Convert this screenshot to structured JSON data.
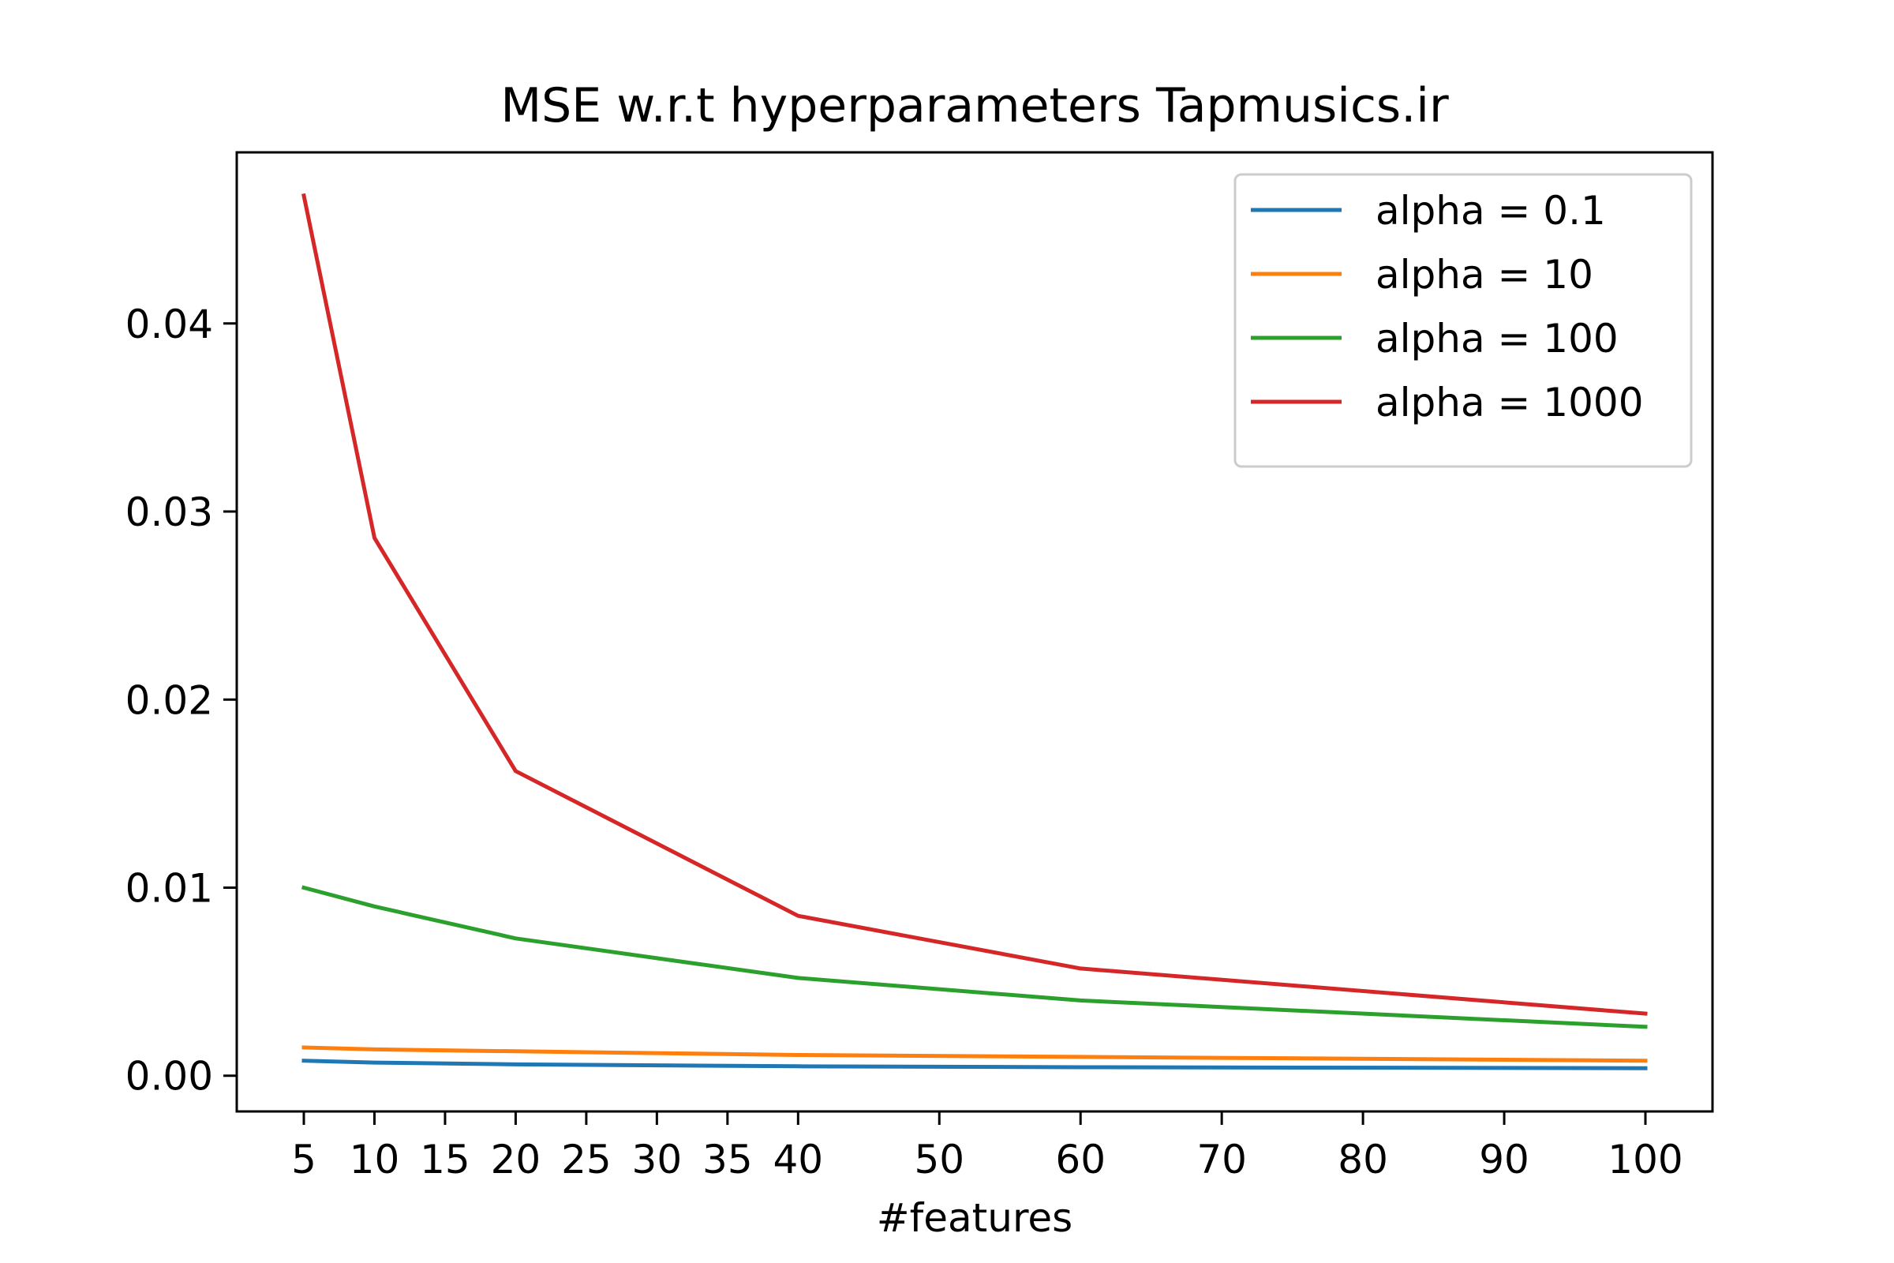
{
  "chart_data": {
    "type": "line",
    "title": "MSE w.r.t hyperparameters Tapmusics.ir",
    "xlabel": "#features",
    "ylabel": "",
    "x": [
      5,
      10,
      20,
      40,
      60,
      100
    ],
    "xticks": [
      5,
      10,
      15,
      20,
      25,
      30,
      35,
      40,
      50,
      60,
      70,
      80,
      90,
      100
    ],
    "xtick_labels": [
      "5",
      "10",
      "15",
      "20",
      "25",
      "30",
      "35",
      "40",
      "50",
      "60",
      "70",
      "80",
      "90",
      "100"
    ],
    "xlim": [
      0.25,
      104.75
    ],
    "yticks": [
      0.0,
      0.01,
      0.02,
      0.03,
      0.04
    ],
    "ytick_labels": [
      "0.00",
      "0.01",
      "0.02",
      "0.03",
      "0.04"
    ],
    "ylim": [
      -0.0019,
      0.0491
    ],
    "grid": false,
    "legend_position": "top-right",
    "series": [
      {
        "name": "alpha = 0.1",
        "color": "#1f77b4",
        "values": [
          0.0008,
          0.0007,
          0.0006,
          0.0005,
          0.00045,
          0.0004
        ]
      },
      {
        "name": "alpha = 10",
        "color": "#ff7f0e",
        "values": [
          0.0015,
          0.0014,
          0.0013,
          0.0011,
          0.001,
          0.0008
        ]
      },
      {
        "name": "alpha = 100",
        "color": "#2ca02c",
        "values": [
          0.01,
          0.009,
          0.0073,
          0.0052,
          0.004,
          0.0026
        ]
      },
      {
        "name": "alpha = 1000",
        "color": "#d62728",
        "values": [
          0.0468,
          0.0286,
          0.0162,
          0.0085,
          0.0057,
          0.0033
        ]
      }
    ]
  }
}
